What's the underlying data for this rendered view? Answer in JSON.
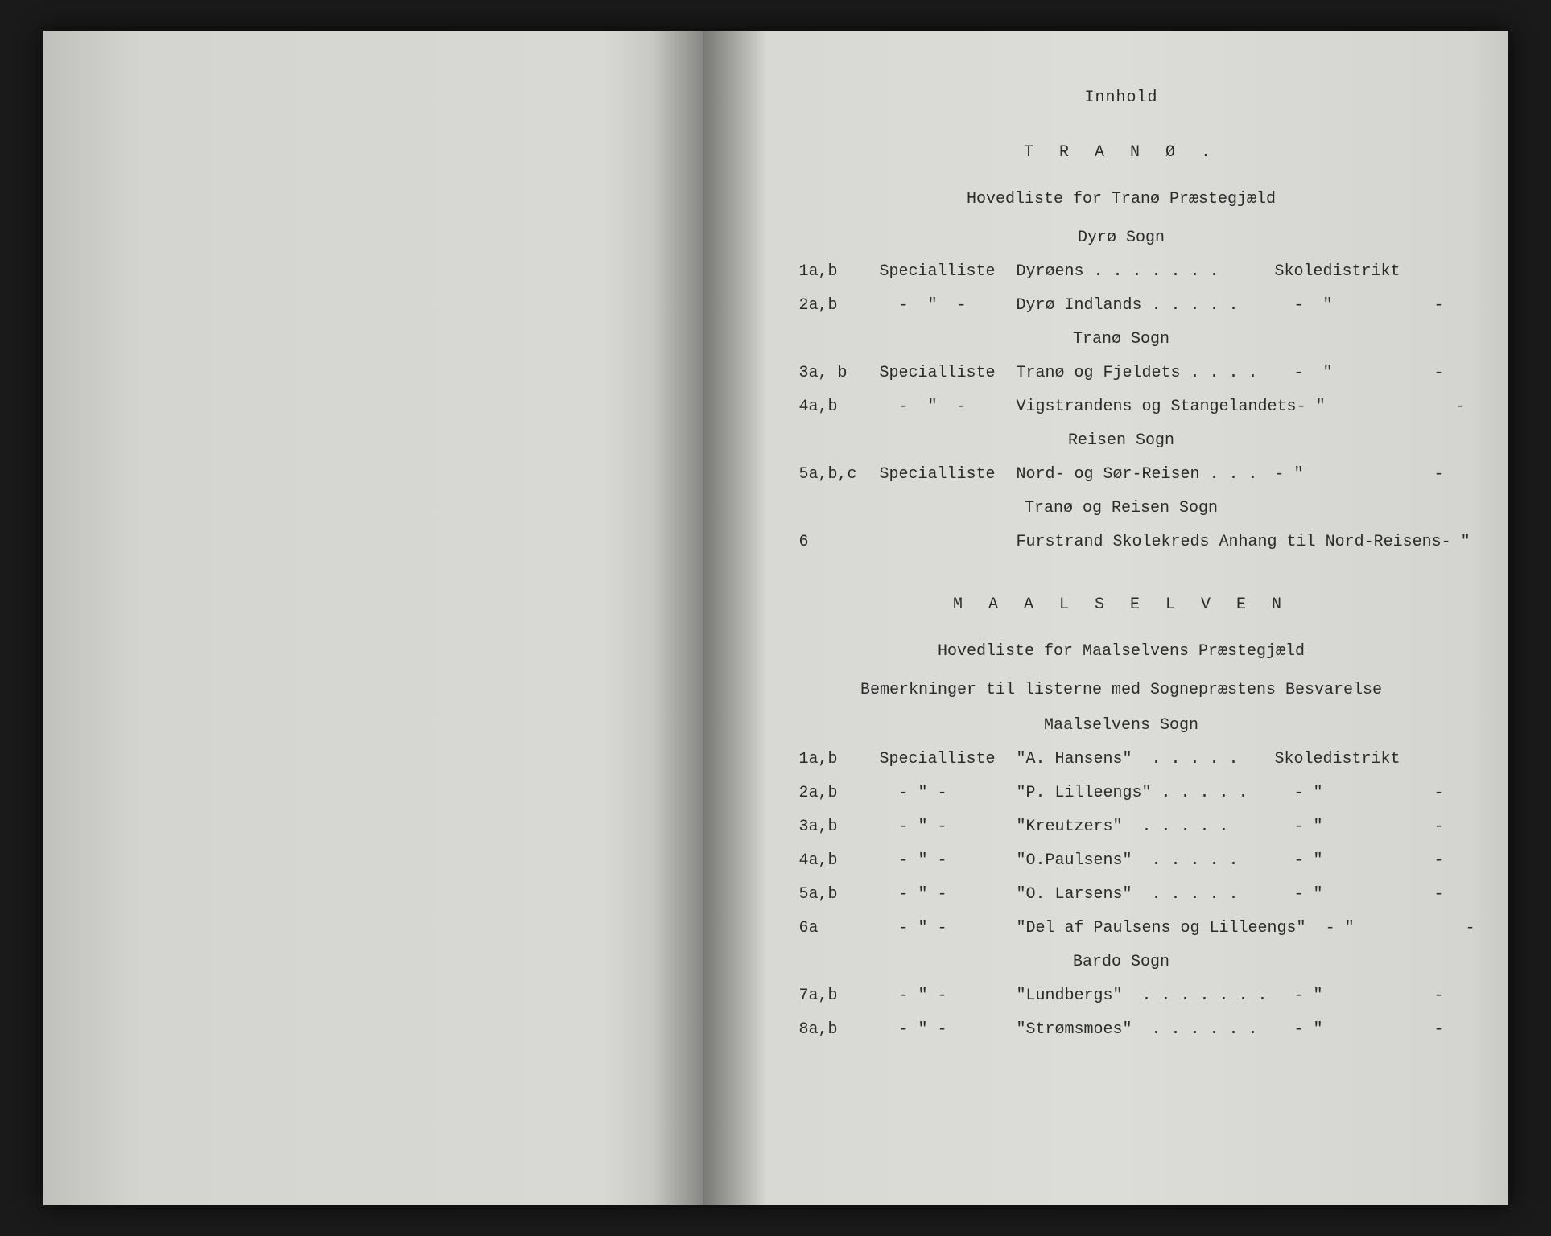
{
  "colors": {
    "page_bg": "#d8d8d4",
    "text": "#2a2a2a",
    "outer_bg": "#1a1a1a"
  },
  "typography": {
    "font_family": "Courier New",
    "base_size_pt": 15,
    "letter_spacing_title": 10
  },
  "header": {
    "title": "Innhold"
  },
  "section1": {
    "main_title": "T R A N Ø .",
    "hovedliste": "Hovedliste for Tranø Præstegjæld",
    "groups": [
      {
        "heading": "Dyrø Sogn",
        "rows": [
          {
            "a": "1a,b",
            "b": "Specialliste",
            "c": "Dyrøens . . . . . . .",
            "d": "Skoledistrikt",
            "e": ""
          },
          {
            "a": "2a,b",
            "b": "  -  \"  -",
            "c": "Dyrø Indlands . . . . .",
            "d": "  -  \"",
            "e": "-"
          }
        ]
      },
      {
        "heading": "Tranø Sogn",
        "rows": [
          {
            "a": "3a, b",
            "b": "Specialliste",
            "c": "Tranø og Fjeldets . . . .",
            "d": "  -  \"",
            "e": "-"
          },
          {
            "a": "4a,b",
            "b": "  -  \"  -",
            "c": "Vigstrandens og Stangelandets",
            "d": "- \"",
            "e": "-"
          }
        ]
      },
      {
        "heading": "Reisen Sogn",
        "rows": [
          {
            "a": "5a,b,c",
            "b": "Specialliste",
            "c": "Nord- og Sør-Reisen . . .",
            "d": "- \"",
            "e": "-"
          }
        ]
      },
      {
        "heading": "Tranø og Reisen Sogn",
        "rows": [
          {
            "a": "6",
            "b": "",
            "c": "Furstrand Skolekreds Anhang til Nord-Reisens",
            "d": "- \"",
            "e": "-"
          }
        ]
      }
    ]
  },
  "section2": {
    "main_title": "M A A L S E L V E N",
    "hovedliste": "Hovedliste for Maalselvens Præstegjæld",
    "note": "Bemerkninger til listerne med Sognepræstens Besvarelse",
    "groups": [
      {
        "heading": "Maalselvens Sogn",
        "rows": [
          {
            "a": "1a,b",
            "b": "Specialliste",
            "c": "\"A. Hansens\"  . . . . .",
            "d": "Skoledistrikt",
            "e": ""
          },
          {
            "a": "2a,b",
            "b": "  - \" -",
            "c": "\"P. Lilleengs\" . . . . .",
            "d": "  - \"",
            "e": "-"
          },
          {
            "a": "3a,b",
            "b": "  - \" -",
            "c": "\"Kreutzers\"  . . . . .",
            "d": "  - \"",
            "e": "-"
          },
          {
            "a": "4a,b",
            "b": "  - \" -",
            "c": "\"O.Paulsens\"  . . . . .",
            "d": "  - \"",
            "e": "-"
          },
          {
            "a": "5a,b",
            "b": "  - \" -",
            "c": "\"O. Larsens\"  . . . . .",
            "d": "  - \"",
            "e": "-"
          },
          {
            "a": "6a",
            "b": "  - \" -",
            "c": "\"Del af Paulsens og Lilleengs\"",
            "d": "  - \"",
            "e": "-"
          }
        ]
      },
      {
        "heading": "Bardo Sogn",
        "rows": [
          {
            "a": "7a,b",
            "b": "  - \" -",
            "c": "\"Lundbergs\"  . . . . . . .",
            "d": "  - \"",
            "e": "-"
          },
          {
            "a": "8a,b",
            "b": "  - \" -",
            "c": "\"Strømsmoes\"  . . . . . .",
            "d": "  - \"",
            "e": "-"
          }
        ]
      }
    ]
  }
}
